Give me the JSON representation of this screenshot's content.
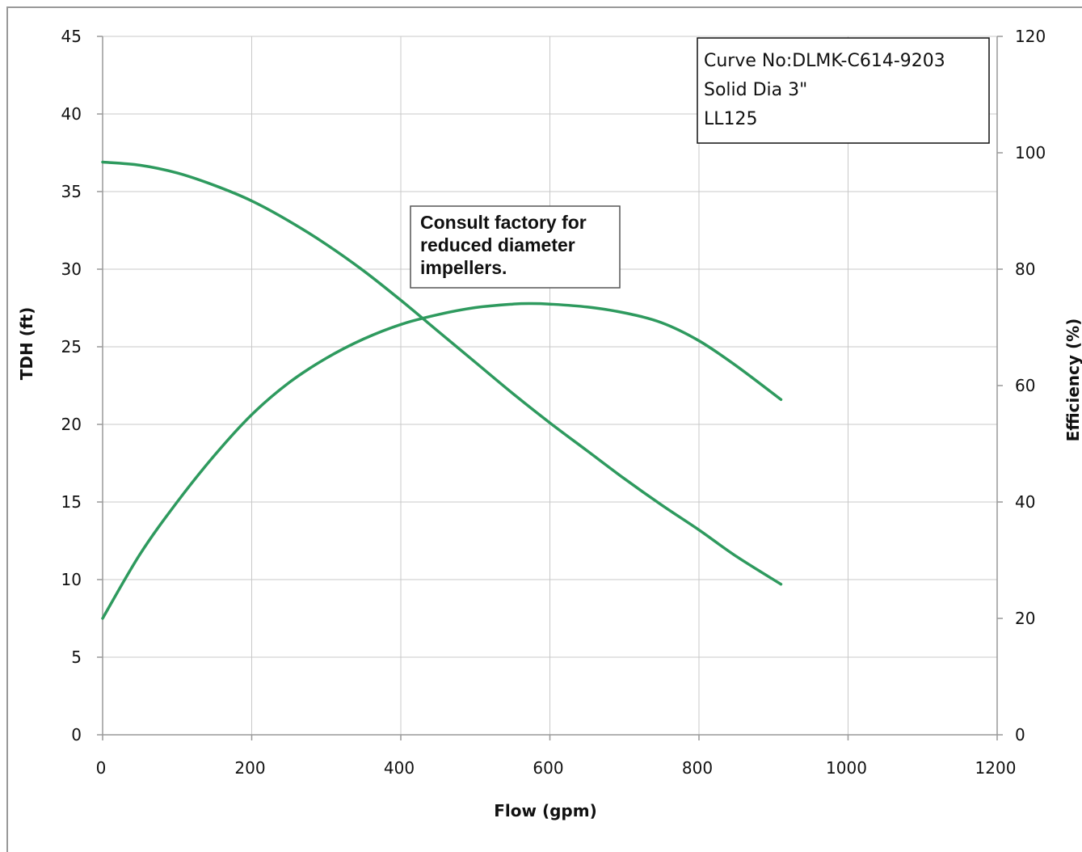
{
  "chart_data": {
    "type": "line",
    "xlabel": "Flow (gpm)",
    "ylabel": "TDH (ft)",
    "y2label": "Efficiency (%)",
    "xlim": [
      0,
      1200
    ],
    "ylim": [
      0,
      45
    ],
    "y2lim": [
      0,
      120
    ],
    "x_ticks": [
      "0",
      "200",
      "400",
      "600",
      "800",
      "1000",
      "1200"
    ],
    "y_ticks": [
      "0",
      "5",
      "10",
      "15",
      "20",
      "25",
      "30",
      "35",
      "40",
      "45"
    ],
    "y2_ticks": [
      "0",
      "20",
      "40",
      "60",
      "80",
      "100",
      "120"
    ],
    "grid": true,
    "series": [
      {
        "axis": "left",
        "x": [
          0,
          50,
          100,
          150,
          200,
          250,
          300,
          350,
          400,
          450,
          500,
          550,
          600,
          650,
          700,
          750,
          800,
          850,
          910
        ],
        "values": [
          36.9,
          36.7,
          36.2,
          35.4,
          34.4,
          33.1,
          31.6,
          29.9,
          28.0,
          26.0,
          24.0,
          22.0,
          20.1,
          18.3,
          16.5,
          14.8,
          13.2,
          11.5,
          9.7
        ]
      },
      {
        "axis": "right",
        "x": [
          0,
          50,
          100,
          150,
          200,
          250,
          300,
          350,
          400,
          450,
          500,
          550,
          575,
          600,
          650,
          700,
          750,
          800,
          850,
          910
        ],
        "values": [
          20,
          31,
          40,
          48,
          55,
          60.5,
          64.7,
          68,
          70.5,
          72.2,
          73.4,
          74,
          74.1,
          74,
          73.5,
          72.5,
          70.8,
          67.7,
          63.4,
          57.6
        ]
      }
    ],
    "colors": {
      "curve": "#2e9a5e",
      "grid": "#c8c8c8",
      "axis": "#999999"
    }
  },
  "info_box": {
    "lines": [
      "Curve No:DLMK-C614-9203",
      "Solid Dia 3\"",
      "LL125"
    ]
  },
  "note_box": {
    "lines": [
      "Consult factory for",
      "reduced diameter",
      "impellers."
    ]
  }
}
